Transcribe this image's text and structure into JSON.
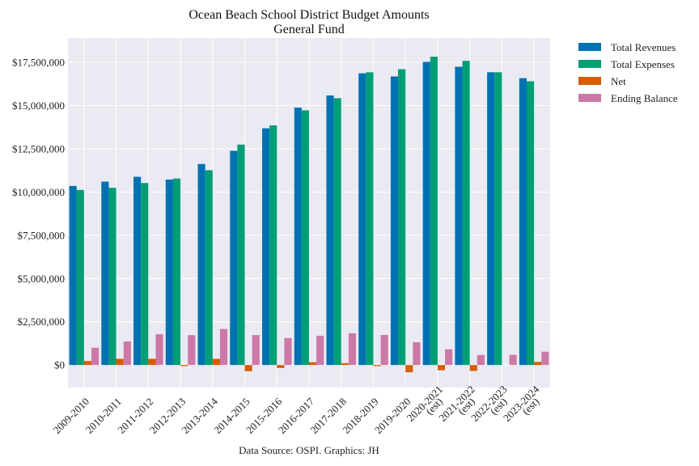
{
  "chart_data": {
    "type": "bar",
    "title": "Ocean Beach School District Budget Amounts",
    "subtitle": "General Fund",
    "source": "Data Source: OSPI. Graphics: JH",
    "categories": [
      [
        "2009-2010"
      ],
      [
        "2010-2011"
      ],
      [
        "2011-2012"
      ],
      [
        "2012-2013"
      ],
      [
        "2013-2014"
      ],
      [
        "2014-2015"
      ],
      [
        "2015-2016"
      ],
      [
        "2016-2017"
      ],
      [
        "2017-2018"
      ],
      [
        "2018-2019"
      ],
      [
        "2019-2020"
      ],
      [
        "2020-2021",
        "(est)"
      ],
      [
        "2021-2022",
        "(est)"
      ],
      [
        "2022-2023",
        "(est)"
      ],
      [
        "2023-2024",
        "(est)"
      ]
    ],
    "series": [
      {
        "name": "Total Revenues",
        "color": "#0072b2",
        "values": [
          10350000,
          10600000,
          10880000,
          10720000,
          11620000,
          12380000,
          13680000,
          14880000,
          15580000,
          16860000,
          16680000,
          17520000,
          17240000,
          16920000,
          16580000
        ]
      },
      {
        "name": "Total Expenses",
        "color": "#009e73",
        "values": [
          10120000,
          10240000,
          10520000,
          10780000,
          11260000,
          12740000,
          13850000,
          14720000,
          15420000,
          16920000,
          17100000,
          17820000,
          17580000,
          16920000,
          16400000
        ]
      },
      {
        "name": "Net",
        "color": "#d55e00",
        "values": [
          230000,
          360000,
          360000,
          -60000,
          360000,
          -360000,
          -170000,
          160000,
          110000,
          -60000,
          -420000,
          -300000,
          -340000,
          0,
          180000
        ]
      },
      {
        "name": "Ending Balance",
        "color": "#cc79a7",
        "values": [
          1000000,
          1360000,
          1780000,
          1730000,
          2080000,
          1730000,
          1560000,
          1690000,
          1840000,
          1740000,
          1320000,
          910000,
          580000,
          590000,
          770000
        ]
      }
    ],
    "yticks": [
      0,
      2500000,
      5000000,
      7500000,
      10000000,
      12500000,
      15000000,
      17500000
    ],
    "ytick_labels": [
      "$0",
      "$2,500,000",
      "$5,000,000",
      "$7,500,000",
      "$10,000,000",
      "$12,500,000",
      "$15,000,000",
      "$17,500,000"
    ],
    "ylim": [
      -1300000,
      18900000
    ],
    "grid": true,
    "legend": "outside-top-right",
    "colors": {
      "plot_background": "#eaeaf2",
      "grid": "#ffffff"
    }
  }
}
